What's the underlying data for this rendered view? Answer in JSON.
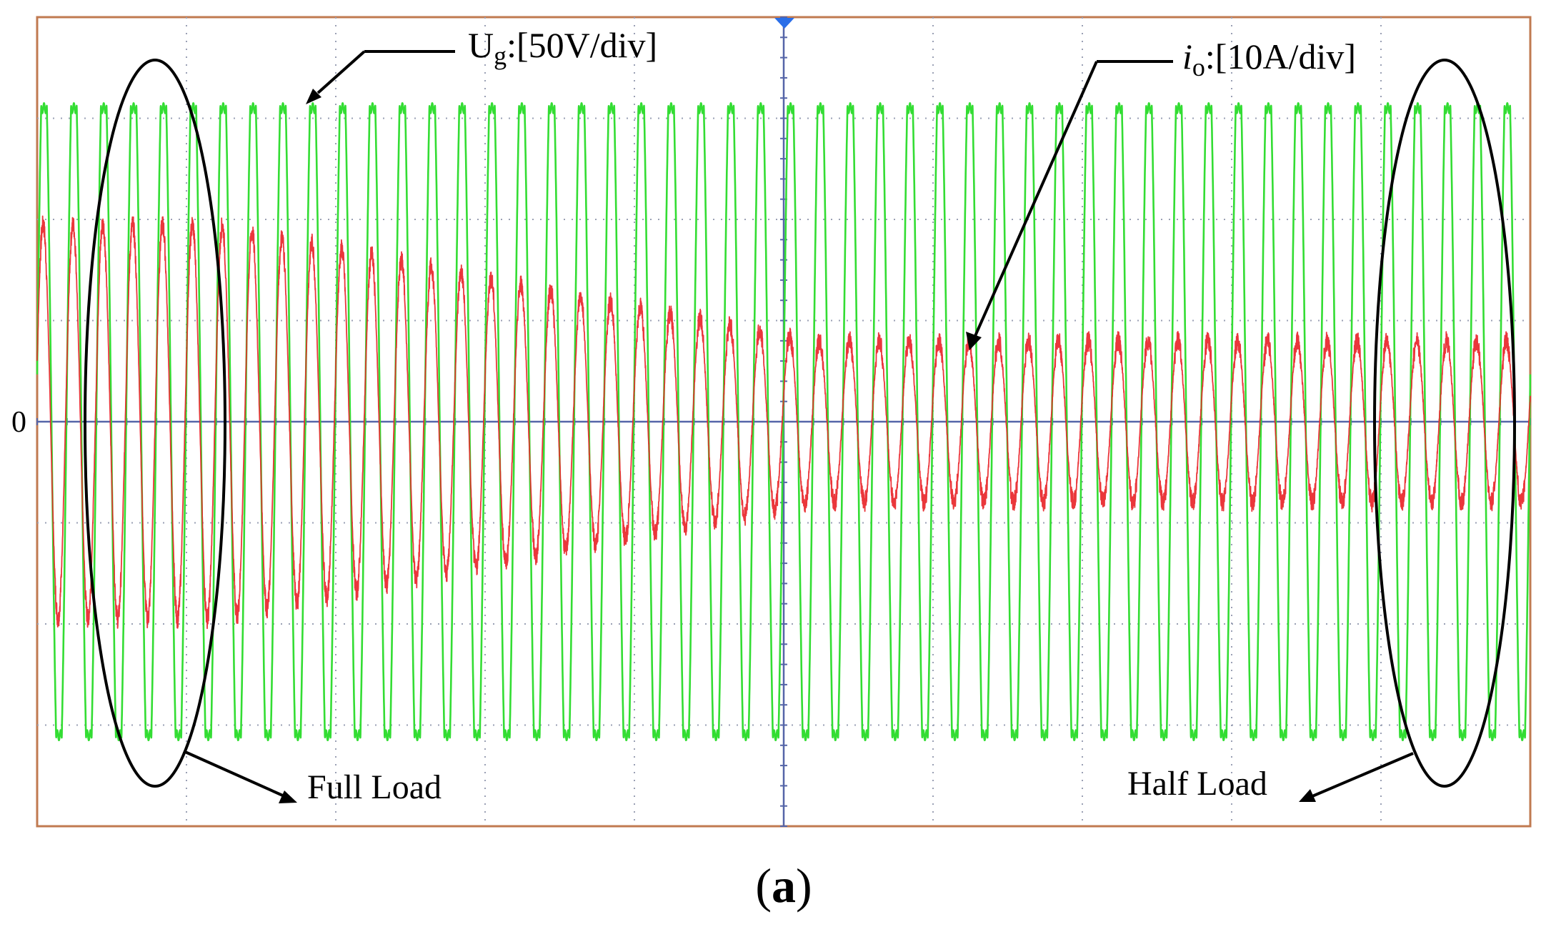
{
  "chart_data": {
    "type": "line",
    "title": "",
    "xlabel": "",
    "ylabel": "",
    "zero_label": "0",
    "grid": true,
    "divisions": {
      "x": 10,
      "y": 8
    },
    "ylim_div": [
      -4,
      4
    ],
    "cycles": 50,
    "series": [
      {
        "name": "Ug",
        "label_main": "U",
        "label_sub": "g",
        "label_scale": ":[50V/div]",
        "color": "#33dd33",
        "amplitude_div": [
          3.1,
          3.1
        ],
        "waveform": "sine with flattened peaks"
      },
      {
        "name": "io",
        "label_main": "i",
        "label_sub": "o",
        "label_scale": ":[10A/div]",
        "color": "#e8262a",
        "amplitude_div_start": 1.95,
        "amplitude_div_end": 0.8,
        "step_region": "transition from full load to half load"
      }
    ],
    "annotations": [
      {
        "text": "Full Load",
        "region": "left"
      },
      {
        "text": "Half Load",
        "region": "right"
      }
    ],
    "caption_letter": "a",
    "caption_open": "(",
    "caption_close": ")"
  }
}
